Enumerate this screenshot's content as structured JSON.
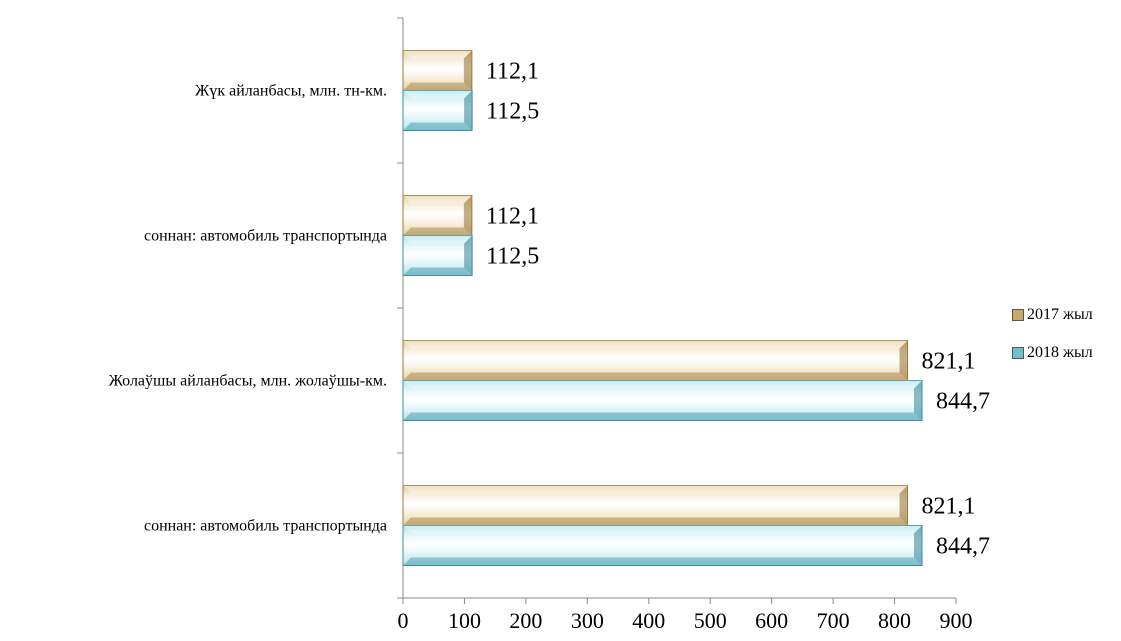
{
  "chart_data": {
    "type": "bar",
    "orientation": "horizontal",
    "categories": [
      "Жүк айланбасы, млн. тн-км.",
      "соннан: автомобиль транспортында",
      "Жолаўшы айланбасы, млн. жолаўшы-км.",
      "соннан: автомобиль транспортында"
    ],
    "series": [
      {
        "name": "2017 жыл",
        "values": [
          112.1,
          112.1,
          821.1,
          821.1
        ],
        "labels": [
          "112,1",
          "112,1",
          "821,1",
          "821,1"
        ],
        "color": "#e8cd99",
        "edge": "#9c7a3d"
      },
      {
        "name": "2018 жыл",
        "values": [
          112.5,
          112.5,
          844.7,
          844.7
        ],
        "labels": [
          "112,5",
          "112,5",
          "844,7",
          "844,7"
        ],
        "color": "#a9e3ee",
        "edge": "#3f8ea0"
      }
    ],
    "xlim": [
      0,
      900
    ],
    "xticks": [
      "0",
      "100",
      "200",
      "300",
      "400",
      "500",
      "600",
      "700",
      "800",
      "900"
    ],
    "grid": false,
    "legend_position": "right"
  }
}
